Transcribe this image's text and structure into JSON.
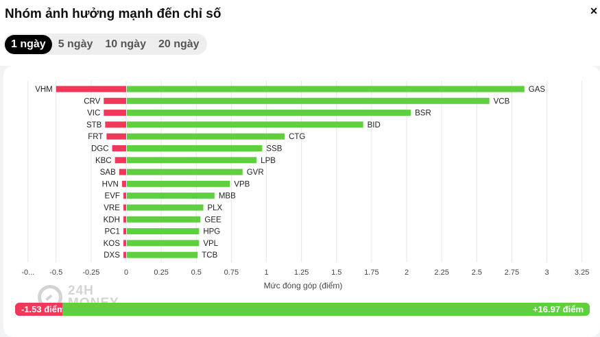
{
  "header": {
    "title": "Nhóm ảnh hưởng mạnh đến chỉ số",
    "close_label": "×"
  },
  "tabs": [
    {
      "label": "1 ngày",
      "active": true
    },
    {
      "label": "5 ngày",
      "active": false
    },
    {
      "label": "10 ngày",
      "active": false
    },
    {
      "label": "20 ngày",
      "active": false
    }
  ],
  "watermark": {
    "line1": "24H",
    "line2": "MONEY"
  },
  "colors": {
    "negative": "#f2385a",
    "positive": "#5fcf40",
    "grid": "#e6e6e6"
  },
  "chart_data": {
    "type": "bar",
    "orientation": "horizontal",
    "xlabel": "Mức đóng góp (điểm)",
    "xlim": [
      -0.7,
      3.3
    ],
    "tick_labels": [
      "-0...",
      "-0.5",
      "-0.25",
      "0",
      "0.25",
      "0.5",
      "0.75",
      "1",
      "1.25",
      "1.5",
      "1.75",
      "2",
      "2.25",
      "2.5",
      "2.75",
      "3",
      "3.25"
    ],
    "tick_values": [
      -0.7,
      -0.5,
      -0.25,
      0,
      0.25,
      0.5,
      0.75,
      1,
      1.25,
      1.5,
      1.75,
      2,
      2.25,
      2.5,
      2.75,
      3,
      3.25
    ],
    "grid": true,
    "negative": {
      "labels": [
        "VHM",
        "CRV",
        "VIC",
        "STB",
        "FRT",
        "DGC",
        "KBC",
        "SAB",
        "HVN",
        "EVF",
        "VRE",
        "KDH",
        "PC1",
        "KOS",
        "DXS"
      ],
      "values": [
        -0.5,
        -0.16,
        -0.16,
        -0.15,
        -0.14,
        -0.1,
        -0.08,
        -0.05,
        -0.03,
        -0.02,
        -0.02,
        -0.02,
        -0.02,
        -0.02,
        -0.02
      ]
    },
    "positive": {
      "labels": [
        "GAS",
        "VCB",
        "BSR",
        "BID",
        "CTG",
        "SSB",
        "LPB",
        "GVR",
        "VPB",
        "MBB",
        "PLX",
        "GEE",
        "HPG",
        "VPL",
        "TCB"
      ],
      "values": [
        2.84,
        2.59,
        2.03,
        1.69,
        1.13,
        0.97,
        0.93,
        0.83,
        0.74,
        0.63,
        0.55,
        0.53,
        0.52,
        0.52,
        0.51
      ]
    }
  },
  "totals": {
    "negative_label": "-1.53 điểm",
    "positive_label": "+16.97 điểm",
    "negative_value": -1.53,
    "positive_value": 16.97
  }
}
